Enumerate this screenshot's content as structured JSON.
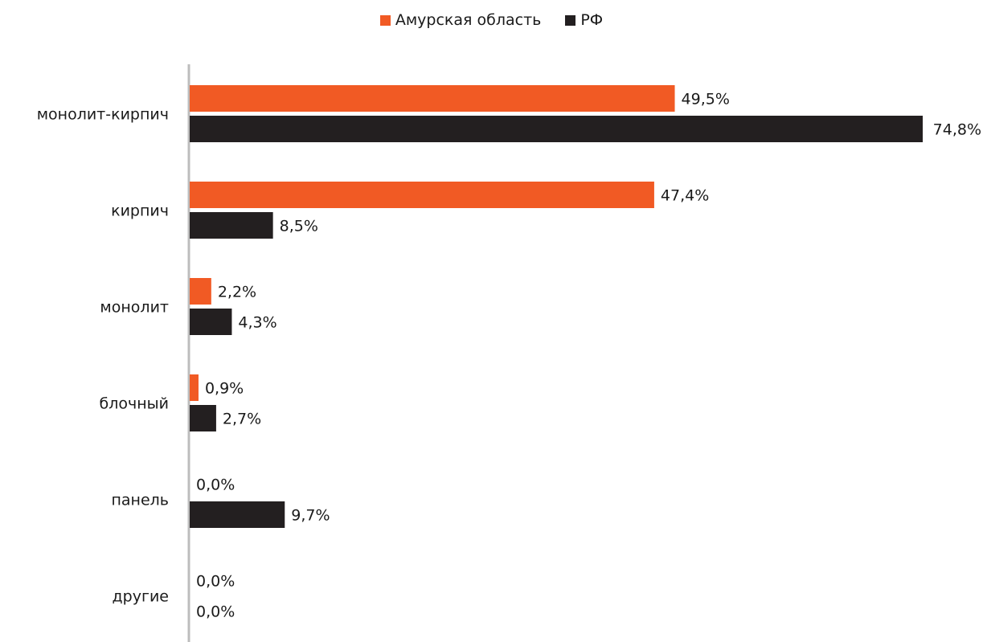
{
  "chart_data": {
    "type": "bar",
    "orientation": "horizontal",
    "categories": [
      "монолит-кирпич",
      "кирпич",
      "монолит",
      "блочный",
      "панель",
      "другие"
    ],
    "series": [
      {
        "name": "Амурская область",
        "color": "#f15a24",
        "values": [
          49.5,
          47.4,
          2.2,
          0.9,
          0.0,
          0.0
        ],
        "labels": [
          "49,5%",
          "47,4%",
          "2,2%",
          "0,9%",
          "0,0%",
          "0,0%"
        ]
      },
      {
        "name": "РФ",
        "color": "#231f20",
        "values": [
          74.8,
          8.5,
          4.3,
          2.7,
          9.7,
          0.0
        ],
        "labels": [
          "74,8%",
          "8,5%",
          "4,3%",
          "2,7%",
          "9,7%",
          "0,0%"
        ]
      }
    ],
    "xlim": [
      0,
      74.8
    ],
    "legend_position": "top-center",
    "grid": false
  }
}
